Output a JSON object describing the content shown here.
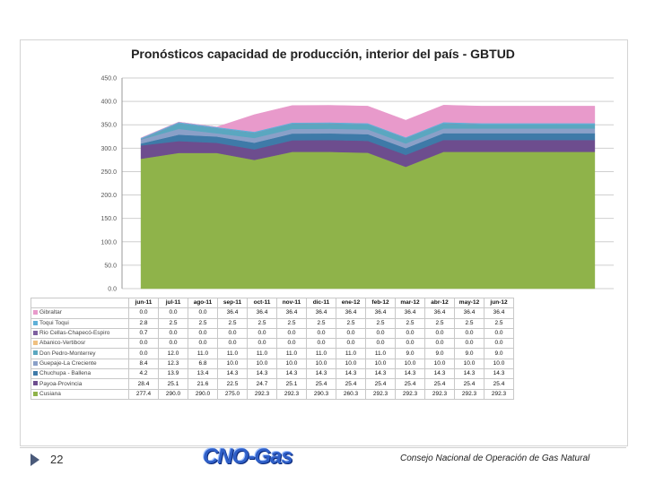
{
  "slide": {
    "page_number": "22",
    "logo_text": "CNO-Gas",
    "org_name": "Consejo Nacional de Operación de Gas Natural"
  },
  "chart_data": {
    "type": "area",
    "stacked": true,
    "title": "Pronósticos capacidad de producción, interior del país - GBTUD",
    "ylim": [
      0,
      450
    ],
    "yticks": [
      "0.0",
      "50.0",
      "100.0",
      "150.0",
      "200.0",
      "250.0",
      "300.0",
      "350.0",
      "400.0",
      "450.0"
    ],
    "grid": true,
    "categories": [
      "jun-11",
      "jul-11",
      "ago-11",
      "sep-11",
      "oct-11",
      "nov-11",
      "dic-11",
      "ene-12",
      "feb-12",
      "mar-12",
      "abr-12",
      "may-12",
      "jun-12"
    ],
    "series": [
      {
        "name": "Cusiana",
        "color": "#8fb34a",
        "values": [
          277.4,
          290.0,
          290.0,
          275.0,
          292.3,
          292.3,
          290.3,
          260.3,
          292.3,
          292.3,
          292.3,
          292.3,
          292.3
        ]
      },
      {
        "name": "Payoa-Provincia",
        "color": "#6d4d8e",
        "values": [
          28.4,
          25.1,
          21.6,
          22.5,
          24.7,
          25.1,
          25.4,
          25.4,
          25.4,
          25.4,
          25.4,
          25.4,
          25.4
        ]
      },
      {
        "name": "Chuchupa - Ballena",
        "color": "#3e7aa8",
        "values": [
          4.2,
          13.9,
          13.4,
          14.3,
          14.3,
          14.3,
          14.3,
          14.3,
          14.3,
          14.3,
          14.3,
          14.3,
          14.3
        ]
      },
      {
        "name": "Guepaje-La Creciente",
        "color": "#8aa0c8",
        "values": [
          8.4,
          12.3,
          6.8,
          10.0,
          10.0,
          10.0,
          10.0,
          10.0,
          10.0,
          10.0,
          10.0,
          10.0,
          10.0
        ]
      },
      {
        "name": "Don Pedro-Monterrey",
        "color": "#5aa7c0",
        "values": [
          0.0,
          12.0,
          11.0,
          11.0,
          11.0,
          11.0,
          11.0,
          11.0,
          11.0,
          9.0,
          9.0,
          9.0,
          9.0
        ]
      },
      {
        "name": "Abanico-Vertibosr",
        "color": "#f0c080",
        "values": [
          0.0,
          0.0,
          0.0,
          0.0,
          0.0,
          0.0,
          0.0,
          0.0,
          0.0,
          0.0,
          0.0,
          0.0,
          0.0
        ]
      },
      {
        "name": "Rio Cellas-Chapecó-Espiro",
        "color": "#7e5fa0",
        "values": [
          0.7,
          0.0,
          0.0,
          0.0,
          0.0,
          0.0,
          0.0,
          0.0,
          0.0,
          0.0,
          0.0,
          0.0,
          0.0
        ]
      },
      {
        "name": "Toqui Toqui",
        "color": "#5fb0d8",
        "values": [
          2.8,
          2.5,
          2.5,
          2.5,
          2.5,
          2.5,
          2.5,
          2.5,
          2.5,
          2.5,
          2.5,
          2.5,
          2.5
        ]
      },
      {
        "name": "Gibraltar",
        "color": "#e89acb",
        "values": [
          0.0,
          0.0,
          0.0,
          36.4,
          36.4,
          36.4,
          36.4,
          36.4,
          36.4,
          36.4,
          36.4,
          36.4,
          36.4
        ]
      }
    ]
  }
}
